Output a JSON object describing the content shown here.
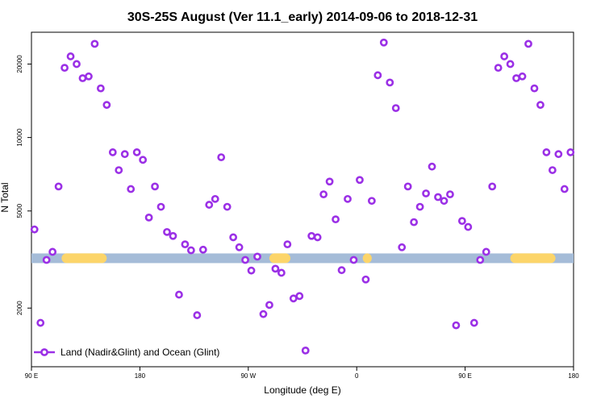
{
  "chart_data": {
    "type": "scatter",
    "title": "30S-25S August (Ver 11.1_early)   2014-09-06 to 2018-12-31",
    "xlabel": "Longitude (deg E)",
    "ylabel": "N Total",
    "y_scale": "log",
    "xlim": [
      90,
      270
    ],
    "ylim": [
      1150,
      27000
    ],
    "x_ticks": [
      {
        "value": 90,
        "label": "90 E"
      },
      {
        "value": 126,
        "label": "180"
      },
      {
        "value": 162,
        "label": "90 W"
      },
      {
        "value": 198,
        "label": "0"
      },
      {
        "value": 234,
        "label": "90 E"
      },
      {
        "value": 270,
        "label": "180"
      }
    ],
    "y_ticks": [
      {
        "value": 2000,
        "label": "2000"
      },
      {
        "value": 5000,
        "label": "5000"
      },
      {
        "value": 10000,
        "label": "10000"
      },
      {
        "value": 20000,
        "label": "20000"
      }
    ],
    "band": {
      "y": 3200,
      "base_color": "#a5bcd8",
      "highlight_color": "#fcd56a",
      "highlight_ranges": [
        [
          100,
          115
        ],
        [
          169,
          176
        ],
        [
          200,
          203
        ],
        [
          249,
          264
        ]
      ]
    },
    "series": [
      {
        "name": "Land (Nadir&Glint) and Ocean (Glint)",
        "color": "#9b30e6",
        "points": [
          [
            91,
            4200
          ],
          [
            93,
            1740
          ],
          [
            95,
            3150
          ],
          [
            97,
            3400
          ],
          [
            99,
            6300
          ],
          [
            101,
            19300
          ],
          [
            103,
            21500
          ],
          [
            105,
            20000
          ],
          [
            107,
            17500
          ],
          [
            109,
            17800
          ],
          [
            111,
            24200
          ],
          [
            113,
            15900
          ],
          [
            115,
            13600
          ],
          [
            117,
            8700
          ],
          [
            119,
            7350
          ],
          [
            121,
            8550
          ],
          [
            123,
            6150
          ],
          [
            125,
            8700
          ],
          [
            127,
            8100
          ],
          [
            129,
            4700
          ],
          [
            131,
            6300
          ],
          [
            133,
            5200
          ],
          [
            135,
            4100
          ],
          [
            137,
            3950
          ],
          [
            139,
            2270
          ],
          [
            141,
            3650
          ],
          [
            143,
            3450
          ],
          [
            145,
            1870
          ],
          [
            147,
            3470
          ],
          [
            149,
            5300
          ],
          [
            151,
            5600
          ],
          [
            153,
            8300
          ],
          [
            155,
            5200
          ],
          [
            157,
            3900
          ],
          [
            159,
            3550
          ],
          [
            161,
            3150
          ],
          [
            163,
            2850
          ],
          [
            165,
            3250
          ],
          [
            167,
            1890
          ],
          [
            169,
            2060
          ],
          [
            171,
            2900
          ],
          [
            173,
            2790
          ],
          [
            175,
            3650
          ],
          [
            177,
            2190
          ],
          [
            179,
            2240
          ],
          [
            181,
            1340
          ],
          [
            183,
            3950
          ],
          [
            185,
            3900
          ],
          [
            187,
            5850
          ],
          [
            189,
            6600
          ],
          [
            191,
            4620
          ],
          [
            193,
            2860
          ],
          [
            195,
            5600
          ],
          [
            197,
            3150
          ],
          [
            199,
            6700
          ],
          [
            201,
            2620
          ],
          [
            203,
            5500
          ],
          [
            205,
            18000
          ],
          [
            207,
            24500
          ],
          [
            209,
            16800
          ],
          [
            211,
            13200
          ],
          [
            213,
            3550
          ],
          [
            215,
            6300
          ],
          [
            217,
            4500
          ],
          [
            219,
            5200
          ],
          [
            221,
            5900
          ],
          [
            223,
            7600
          ],
          [
            225,
            5700
          ],
          [
            227,
            5500
          ],
          [
            229,
            5850
          ],
          [
            231,
            1700
          ],
          [
            233,
            4550
          ],
          [
            235,
            4300
          ],
          [
            237,
            1740
          ],
          [
            239,
            3150
          ],
          [
            241,
            3400
          ],
          [
            243,
            6300
          ],
          [
            245,
            19300
          ],
          [
            247,
            21500
          ],
          [
            249,
            20000
          ],
          [
            251,
            17500
          ],
          [
            253,
            17800
          ],
          [
            255,
            24200
          ],
          [
            257,
            15900
          ],
          [
            259,
            13600
          ],
          [
            261,
            8700
          ],
          [
            263,
            7350
          ],
          [
            265,
            8550
          ],
          [
            267,
            6150
          ],
          [
            269,
            8700
          ]
        ]
      }
    ],
    "legend": {
      "position": "bottom-left"
    }
  }
}
